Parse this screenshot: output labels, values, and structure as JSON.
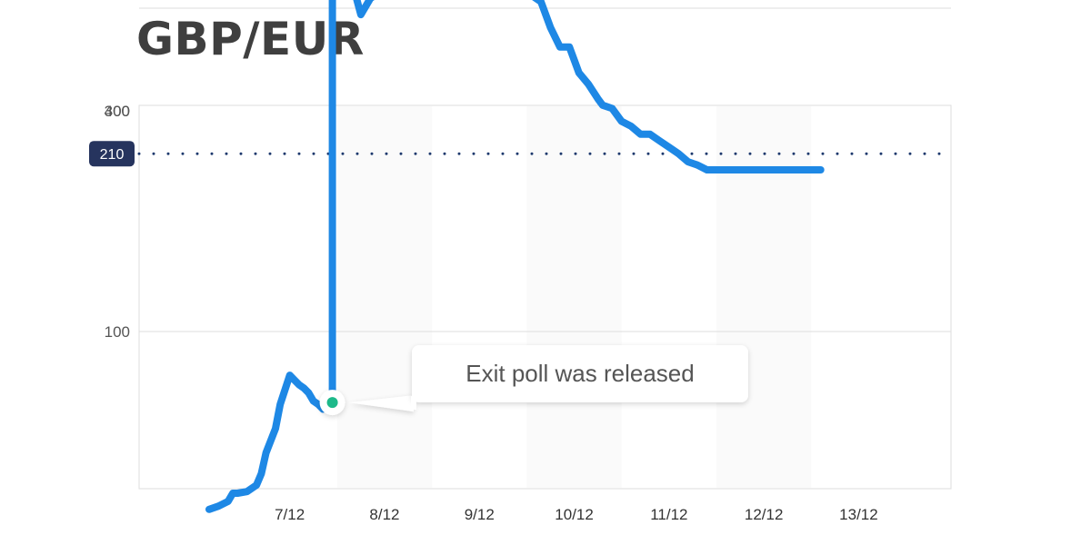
{
  "chart_data": {
    "type": "line",
    "title": "GBP/EUR",
    "xlabel": "",
    "ylabel": "",
    "x_tick_labels": [
      "7/12",
      "8/12",
      "9/12",
      "10/12",
      "11/12",
      "12/12",
      "13/12"
    ],
    "y_ticks": [
      100,
      300,
      400
    ],
    "ylim": [
      -70,
      400
    ],
    "grid": true,
    "colors": {
      "line": "#1e88e5",
      "reference": "#1f3a6e",
      "badge": "#26345e",
      "marker": "#1db98a"
    },
    "reference_line": {
      "value": 210,
      "label": "210",
      "style": "dotted"
    },
    "series": [
      {
        "x": [
          0.0,
          0.1,
          0.2,
          0.25,
          0.3,
          0.4,
          0.5,
          0.55,
          0.6,
          0.7,
          0.75,
          0.85,
          0.9,
          0.95,
          1.0,
          1.05,
          1.1,
          1.15,
          1.2,
          1.3,
          1.3,
          1.35,
          1.4,
          1.5,
          1.6,
          1.7,
          1.75,
          1.8,
          1.85,
          1.9,
          2.0,
          2.1,
          2.2,
          2.3,
          2.4,
          2.5,
          2.6,
          2.7,
          2.75,
          2.8,
          2.9,
          3.0,
          3.05,
          3.15,
          3.2,
          3.3,
          3.4,
          3.5,
          3.6,
          3.7,
          3.8,
          3.9,
          4.0,
          4.1,
          4.15,
          4.25,
          4.35,
          4.45,
          4.55,
          4.65,
          4.75,
          4.85,
          4.95,
          5.05,
          5.15,
          5.25,
          5.35,
          5.45,
          5.55,
          5.65,
          5.75,
          5.85,
          5.95,
          6.05,
          6.15,
          6.25,
          6.35,
          6.45
        ],
        "y": [
          -10,
          -8,
          -5,
          0,
          0,
          1,
          5,
          12,
          25,
          40,
          55,
          73,
          70,
          67,
          65,
          62,
          57,
          55,
          52,
          55,
          352,
          338,
          329,
          318,
          296,
          306,
          308,
          308,
          313,
          316,
          325,
          325,
          338,
          340,
          356,
          342,
          344,
          334,
          330,
          326,
          320,
          316,
          313,
          310,
          310,
          313,
          308,
          304,
          288,
          276,
          276,
          260,
          253,
          244,
          240,
          238,
          230,
          227,
          222,
          222,
          218,
          214,
          210,
          205,
          203,
          200,
          200,
          200,
          200,
          200,
          200,
          200,
          200,
          200,
          200,
          200,
          200,
          200
        ]
      }
    ],
    "annotation": {
      "text": "Exit poll was released",
      "x": 1.3,
      "y": 55
    }
  }
}
